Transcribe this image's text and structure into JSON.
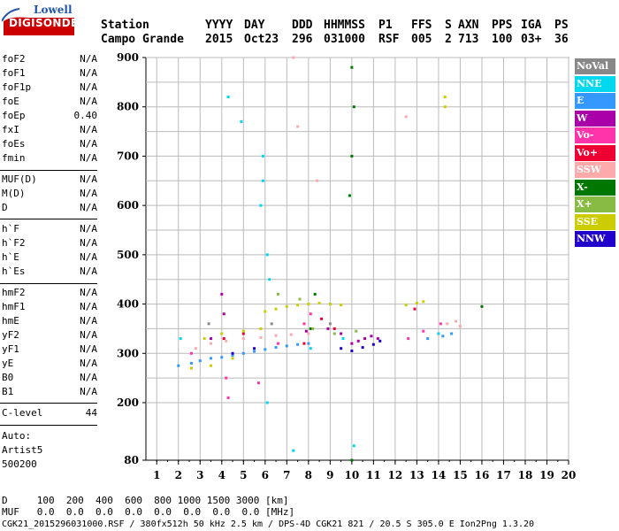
{
  "logo": {
    "top": "Lowell",
    "bottom": "DIGISONDE"
  },
  "header": {
    "row1": [
      "Station",
      "YYYY",
      "DAY",
      "DDD",
      "HHMMSS",
      "P1",
      "FFS",
      "S",
      "AXN",
      "PPS",
      "IGA",
      "PS"
    ],
    "row2": [
      "Campo Grande",
      "2015",
      "Oct23",
      "296",
      "031000",
      "RSF",
      "005",
      "2",
      "713",
      "100",
      "03+",
      "36"
    ]
  },
  "params": {
    "group1": [
      {
        "name": "foF2",
        "value": "N/A"
      },
      {
        "name": "foF1",
        "value": "N/A"
      },
      {
        "name": "foF1p",
        "value": "N/A"
      },
      {
        "name": "foE",
        "value": "N/A"
      },
      {
        "name": "foEp",
        "value": "0.40"
      },
      {
        "name": "fxI",
        "value": "N/A"
      },
      {
        "name": "foEs",
        "value": "N/A"
      },
      {
        "name": "fmin",
        "value": "N/A"
      }
    ],
    "group2": [
      {
        "name": "MUF(D)",
        "value": "N/A"
      },
      {
        "name": "M(D)",
        "value": "N/A"
      },
      {
        "name": "D",
        "value": "N/A"
      }
    ],
    "group3": [
      {
        "name": "h`F",
        "value": "N/A"
      },
      {
        "name": "h`F2",
        "value": "N/A"
      },
      {
        "name": "h`E",
        "value": "N/A"
      },
      {
        "name": "h`Es",
        "value": "N/A"
      }
    ],
    "group4": [
      {
        "name": "hmF2",
        "value": "N/A"
      },
      {
        "name": "hmF1",
        "value": "N/A"
      },
      {
        "name": "hmE",
        "value": "N/A"
      },
      {
        "name": "yF2",
        "value": "N/A"
      },
      {
        "name": "yF1",
        "value": "N/A"
      },
      {
        "name": "yE",
        "value": "N/A"
      },
      {
        "name": "B0",
        "value": "N/A"
      },
      {
        "name": "B1",
        "value": "N/A"
      }
    ],
    "group5": [
      {
        "name": "C-level",
        "value": "44"
      }
    ]
  },
  "side_notes": [
    "Auto:",
    "Artist5",
    "500200"
  ],
  "legend": [
    {
      "label": "NoVal",
      "color": "#888888"
    },
    {
      "label": "NNE",
      "color": "#00d8f0"
    },
    {
      "label": "E",
      "color": "#3399ff"
    },
    {
      "label": "W",
      "color": "#aa00aa"
    },
    {
      "label": "Vo-",
      "color": "#ff33aa"
    },
    {
      "label": "Vo+",
      "color": "#ee0033"
    },
    {
      "label": "SSW",
      "color": "#ffaaaa"
    },
    {
      "label": "X-",
      "color": "#007700"
    },
    {
      "label": "X+",
      "color": "#88bb44"
    },
    {
      "label": "SSE",
      "color": "#cccc00"
    },
    {
      "label": "NNW",
      "color": "#2200cc"
    }
  ],
  "footer": {
    "line1": "D     100  200  400  600  800 1000 1500 3000 [km]",
    "line2": "MUF   0.0  0.0  0.0  0.0  0.0  0.0  0.0  0.0 [MHz]",
    "line3": "CGK21_2015296031000.RSF / 380fx512h 50 kHz 2.5 km / DPS-4D CGK21 821 / 20.5 S 305.0 E Ion2Png 1.3.20"
  },
  "chart_data": {
    "type": "scatter",
    "title": "",
    "xlabel": "",
    "ylabel": "",
    "xlim": [
      0.5,
      20
    ],
    "ylim": [
      80,
      900
    ],
    "x_ticks": [
      1,
      2,
      3,
      4,
      5,
      6,
      7,
      8,
      9,
      10,
      11,
      12,
      13,
      14,
      15,
      16,
      17,
      18,
      19,
      20
    ],
    "y_ticks": [
      80,
      200,
      300,
      400,
      500,
      600,
      700,
      800,
      900
    ],
    "grid": true,
    "series": [
      {
        "name": "NNE",
        "color": "#00d8f0",
        "points": [
          [
            5.9,
            700
          ],
          [
            5.9,
            650
          ],
          [
            5.8,
            600
          ],
          [
            6.1,
            500
          ],
          [
            6.2,
            450
          ],
          [
            4.3,
            820
          ],
          [
            2.1,
            330
          ],
          [
            8.1,
            310
          ],
          [
            9.6,
            330
          ],
          [
            14.0,
            340
          ],
          [
            7.3,
            100
          ],
          [
            10.1,
            110
          ],
          [
            6.1,
            200
          ],
          [
            4.9,
            770
          ]
        ]
      },
      {
        "name": "E",
        "color": "#3399ff",
        "points": [
          [
            2.0,
            275
          ],
          [
            2.6,
            280
          ],
          [
            3.0,
            285
          ],
          [
            3.5,
            290
          ],
          [
            4.0,
            292
          ],
          [
            4.5,
            296
          ],
          [
            5.0,
            300
          ],
          [
            5.5,
            304
          ],
          [
            6.0,
            308
          ],
          [
            6.5,
            312
          ],
          [
            7.0,
            315
          ],
          [
            7.5,
            318
          ],
          [
            8.0,
            320
          ],
          [
            13.5,
            330
          ],
          [
            14.2,
            335
          ],
          [
            14.6,
            340
          ]
        ]
      },
      {
        "name": "W",
        "color": "#aa00aa",
        "points": [
          [
            10.0,
            320
          ],
          [
            10.3,
            325
          ],
          [
            10.6,
            330
          ],
          [
            10.9,
            335
          ],
          [
            11.2,
            330
          ],
          [
            9.5,
            340
          ],
          [
            4.0,
            420
          ],
          [
            4.1,
            380
          ],
          [
            3.5,
            330
          ],
          [
            8.9,
            350
          ],
          [
            7.9,
            345
          ]
        ]
      },
      {
        "name": "Vo-",
        "color": "#ff33aa",
        "points": [
          [
            4.2,
            250
          ],
          [
            4.3,
            210
          ],
          [
            5.7,
            240
          ],
          [
            7.8,
            360
          ],
          [
            8.1,
            380
          ],
          [
            12.6,
            330
          ],
          [
            13.3,
            345
          ],
          [
            14.1,
            360
          ],
          [
            2.6,
            300
          ],
          [
            6.6,
            320
          ]
        ]
      },
      {
        "name": "Vo+",
        "color": "#ee0033",
        "points": [
          [
            4.1,
            330
          ],
          [
            5.0,
            340
          ],
          [
            7.8,
            320
          ],
          [
            9.2,
            350
          ],
          [
            12.9,
            390
          ],
          [
            8.6,
            370
          ]
        ]
      },
      {
        "name": "SSW",
        "color": "#ffaaaa",
        "points": [
          [
            2.8,
            310
          ],
          [
            3.5,
            320
          ],
          [
            4.2,
            325
          ],
          [
            5.0,
            330
          ],
          [
            5.8,
            332
          ],
          [
            6.5,
            336
          ],
          [
            7.2,
            338
          ],
          [
            8.0,
            340
          ],
          [
            14.4,
            360
          ],
          [
            14.8,
            365
          ],
          [
            15.0,
            355
          ],
          [
            7.3,
            900
          ],
          [
            7.5,
            760
          ],
          [
            8.4,
            650
          ],
          [
            12.5,
            780
          ]
        ]
      },
      {
        "name": "X-",
        "color": "#007700",
        "points": [
          [
            10.0,
            880
          ],
          [
            10.1,
            800
          ],
          [
            10.0,
            700
          ],
          [
            9.9,
            620
          ],
          [
            8.1,
            350
          ],
          [
            8.3,
            420
          ],
          [
            16.0,
            395
          ],
          [
            10.0,
            80
          ]
        ]
      },
      {
        "name": "X+",
        "color": "#88bb44",
        "points": [
          [
            8.2,
            350
          ],
          [
            9.2,
            340
          ],
          [
            10.2,
            345
          ],
          [
            6.6,
            420
          ],
          [
            7.6,
            410
          ]
        ]
      },
      {
        "name": "SSE",
        "color": "#cccc00",
        "points": [
          [
            6.0,
            385
          ],
          [
            6.5,
            390
          ],
          [
            7.0,
            395
          ],
          [
            7.5,
            398
          ],
          [
            8.0,
            400
          ],
          [
            8.5,
            402
          ],
          [
            9.0,
            400
          ],
          [
            9.5,
            398
          ],
          [
            12.5,
            398
          ],
          [
            13.0,
            402
          ],
          [
            13.3,
            405
          ],
          [
            14.3,
            800
          ],
          [
            14.3,
            820
          ],
          [
            3.2,
            330
          ],
          [
            4.0,
            340
          ],
          [
            5.0,
            345
          ],
          [
            5.8,
            350
          ],
          [
            2.6,
            270
          ],
          [
            3.5,
            275
          ],
          [
            4.5,
            290
          ]
        ]
      },
      {
        "name": "NNW",
        "color": "#2200cc",
        "points": [
          [
            9.5,
            310
          ],
          [
            10.0,
            305
          ],
          [
            10.5,
            312
          ],
          [
            11.0,
            318
          ],
          [
            11.3,
            325
          ],
          [
            4.5,
            300
          ],
          [
            5.5,
            310
          ]
        ]
      },
      {
        "name": "NoVal",
        "color": "#888888",
        "points": [
          [
            3.4,
            360
          ],
          [
            6.3,
            360
          ],
          [
            9.0,
            360
          ]
        ]
      }
    ]
  }
}
